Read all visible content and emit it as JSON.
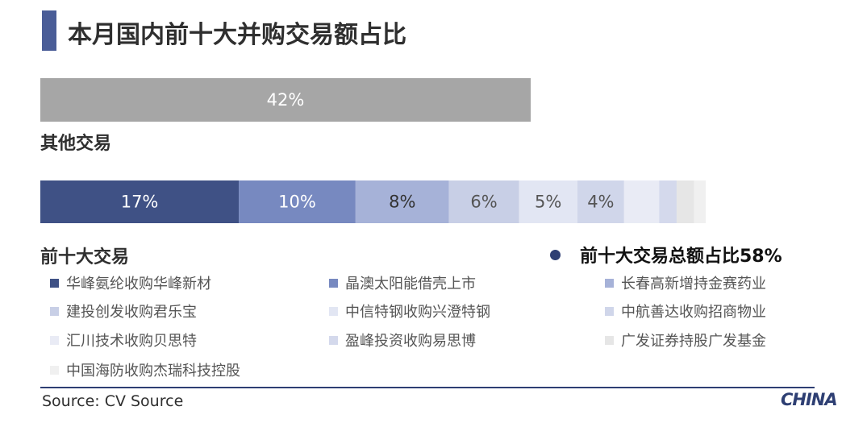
{
  "title": "本月国内前十大并购交易额占比",
  "other": {
    "label": "其他交易",
    "value": 42,
    "text": "42%",
    "color": "#a6a6a6"
  },
  "top10": {
    "label": "前十大交易"
  },
  "summary": {
    "text": "前十大交易总额占比58%"
  },
  "source": "Source: CV Source",
  "logo": "CHINA",
  "chart_data": {
    "type": "bar",
    "stacked": true,
    "orientation": "horizontal",
    "title": "本月国内前十大并购交易额占比",
    "xlim": [
      0,
      100
    ],
    "categories": [
      "其他交易",
      "前十大交易"
    ],
    "series": [
      {
        "name": "华峰氨纶收购华峰新材",
        "value": 17,
        "label": "17%",
        "color": "#3f5185",
        "text_color": "#ffffff"
      },
      {
        "name": "晶澳太阳能借壳上市",
        "value": 10,
        "label": "10%",
        "color": "#7789c0",
        "text_color": "#ffffff"
      },
      {
        "name": "长春高新增持金赛药业",
        "value": 8,
        "label": "8%",
        "color": "#a6b2d8",
        "text_color": "#333333"
      },
      {
        "name": "建投创发收购君乐宝",
        "value": 6,
        "label": "6%",
        "color": "#c8cfe6",
        "text_color": "#555555"
      },
      {
        "name": "中信特钢收购兴澄特钢",
        "value": 5,
        "label": "5%",
        "color": "#e2e6f3",
        "text_color": "#555555"
      },
      {
        "name": "中航善达收购招商物业",
        "value": 4,
        "label": "4%",
        "color": "#d0d6ea",
        "text_color": "#555555"
      },
      {
        "name": "汇川技术收购贝思特",
        "value": 3,
        "label": "",
        "color": "#e9ebf5",
        "text_color": "#555555"
      },
      {
        "name": "盈峰投资收购易思博",
        "value": 1.5,
        "label": "",
        "color": "#d4d9ec",
        "text_color": "#555555"
      },
      {
        "name": "广发证券持股广发基金",
        "value": 1.5,
        "label": "",
        "color": "#e6e6e6",
        "text_color": "#555555"
      },
      {
        "name": "中国海防收购杰瑞科技控股",
        "value": 1,
        "label": "",
        "color": "#f0f0f0",
        "text_color": "#555555"
      }
    ],
    "legend_position": "bottom"
  }
}
